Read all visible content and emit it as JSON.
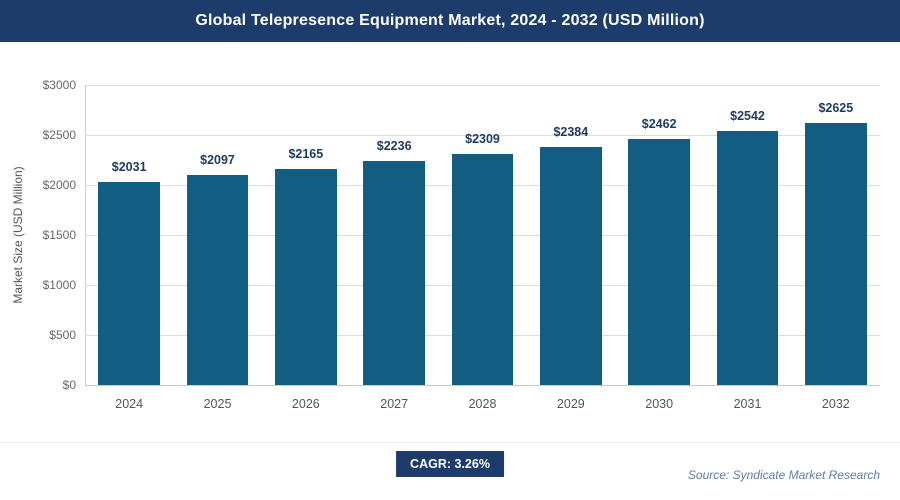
{
  "header": {
    "title": "Global Telepresence Equipment Market, 2024 - 2032 (USD Million)"
  },
  "chart_data": {
    "type": "bar",
    "title": "Global Telepresence Equipment Market, 2024 - 2032 (USD Million)",
    "categories": [
      "2024",
      "2025",
      "2026",
      "2027",
      "2028",
      "2029",
      "2030",
      "2031",
      "2032"
    ],
    "values": [
      2031,
      2097,
      2165,
      2236,
      2309,
      2384,
      2462,
      2542,
      2625
    ],
    "value_labels": [
      "$2031",
      "$2097",
      "$2165",
      "$2236",
      "$2309",
      "$2384",
      "$2462",
      "$2542",
      "$2625"
    ],
    "xlabel": "",
    "ylabel": "Market Size (USD Million)",
    "ylim": [
      0,
      3000
    ],
    "ytick_step": 500,
    "yticks": [
      "$0",
      "$500",
      "$1000",
      "$1500",
      "$2000",
      "$2500",
      "$3000"
    ],
    "grid": true,
    "legend_position": "none"
  },
  "footer": {
    "cagr_label": "CAGR: 3.26%",
    "source": "Source: Syndicate Market Research"
  },
  "colors": {
    "header_bg": "#1d3c6b",
    "bar": "#115e82",
    "badge_bg": "#1d3c6b",
    "value_label": "#1f3a5f"
  }
}
